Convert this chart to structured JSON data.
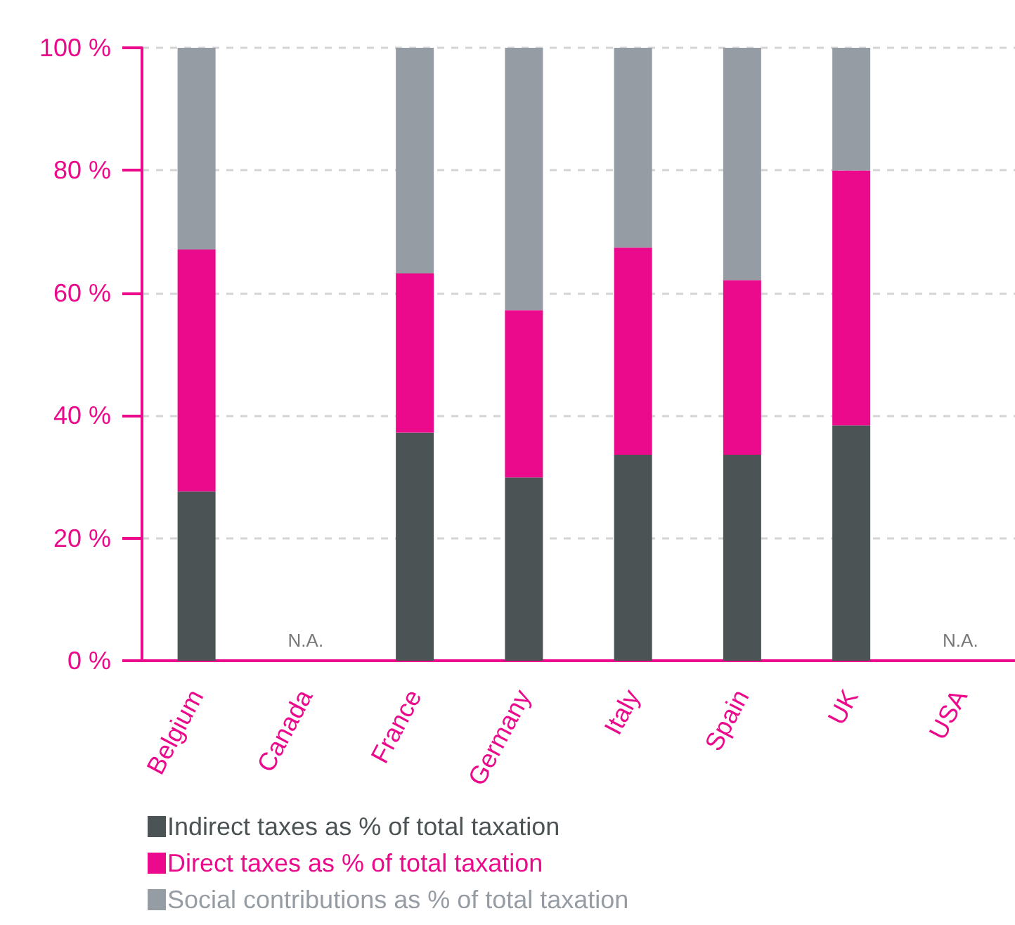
{
  "chart_data": {
    "type": "bar",
    "stacked": true,
    "categories": [
      "Belgium",
      "Canada",
      "France",
      "Germany",
      "Italy",
      "Spain",
      "UK",
      "USA"
    ],
    "series": [
      {
        "name": "Indirect taxes as % of total taxation",
        "color": "#4b5354",
        "values": [
          27.6,
          null,
          37.2,
          29.9,
          33.6,
          33.6,
          38.4,
          null
        ]
      },
      {
        "name": "Direct taxes as % of total taxation",
        "color": "#ec0a8c",
        "values": [
          39.5,
          null,
          26.0,
          27.3,
          33.8,
          28.5,
          41.6,
          null
        ]
      },
      {
        "name": "Social contributions as % of total taxation",
        "color": "#969ca3",
        "values": [
          32.9,
          null,
          36.8,
          42.8,
          32.6,
          37.9,
          20.0,
          null
        ]
      }
    ],
    "ylim": [
      0,
      100
    ],
    "yticks": [
      {
        "value": 0,
        "label": "0 %"
      },
      {
        "value": 20,
        "label": "20 %"
      },
      {
        "value": 40,
        "label": "40 %"
      },
      {
        "value": 60,
        "label": "60 %"
      },
      {
        "value": 80,
        "label": "80 %"
      },
      {
        "value": 100,
        "label": "100 %"
      }
    ],
    "grid": "y",
    "legend": "bottom",
    "annotations": [
      "N.A.",
      "N.A."
    ]
  }
}
